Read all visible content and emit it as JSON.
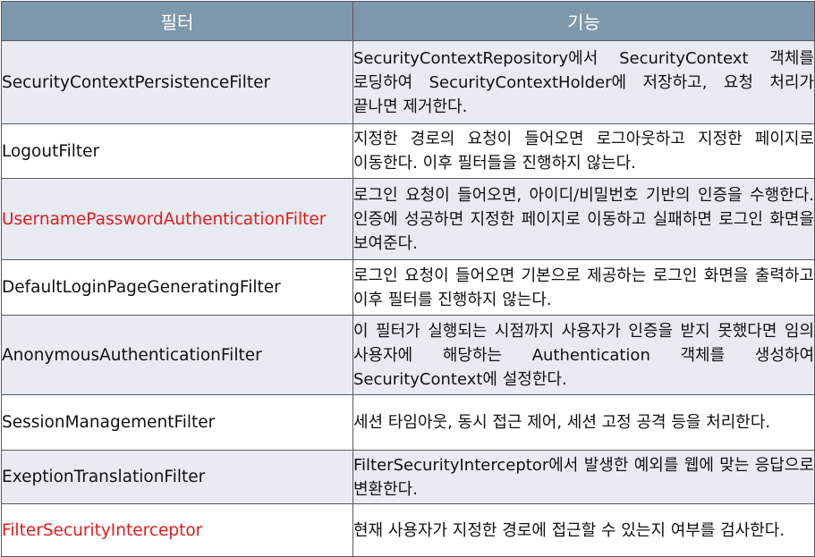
{
  "header": {
    "col_filter": "필터",
    "col_function": "기능"
  },
  "rows": [
    {
      "name": "SecurityContextPersistenceFilter",
      "description": "SecurityContextRepository에서 SecurityContext 객체를 로딩하여 SecurityContextHolder에 저장하고, 요청 처리가 끝나면 제거한다."
    },
    {
      "name": "LogoutFilter",
      "description": "지정한 경로의 요청이 들어오면 로그아웃하고 지정한 페이지로 이동한다. 이후 필터들을 진행하지 않는다."
    },
    {
      "name": "UsernamePasswordAuthenticationFilter",
      "description": "로그인 요청이 들어오면, 아이디/비밀번호 기반의 인증을 수행한다. 인증에 성공하면 지정한 페이지로 이동하고 실패하면 로그인 화면을 보여준다."
    },
    {
      "name": "DefaultLoginPageGeneratingFilter",
      "description": "로그인 요청이 들어오면 기본으로 제공하는 로그인 화면을 출력하고 이후 필터를 진행하지 않는다."
    },
    {
      "name": "AnonymousAuthenticationFilter",
      "description": "이 필터가 실행되는 시점까지 사용자가 인증을 받지 못했다면 임의 사용자에 해당하는 Authentication 객체를 생성하여 SecurityContext에 설정한다."
    },
    {
      "name": "SessionManagementFilter",
      "description": "세션 타임아웃, 동시 접근 제어, 세션 고정 공격 등을 처리한다."
    },
    {
      "name": "ExeptionTranslationFilter",
      "description": "FilterSecurityInterceptor에서 발생한 예외를 웹에 맞는 응답으로 변환한다."
    },
    {
      "name": "FilterSecurityInterceptor",
      "description": "현재 사용자가 지정한 경로에 접근할 수 있는지 여부를 검사한다."
    }
  ],
  "colors": {
    "header_bg": "#7d97ac",
    "row_alt_bg": "#e8ebf2",
    "highlight_text": "#e31b1b"
  }
}
